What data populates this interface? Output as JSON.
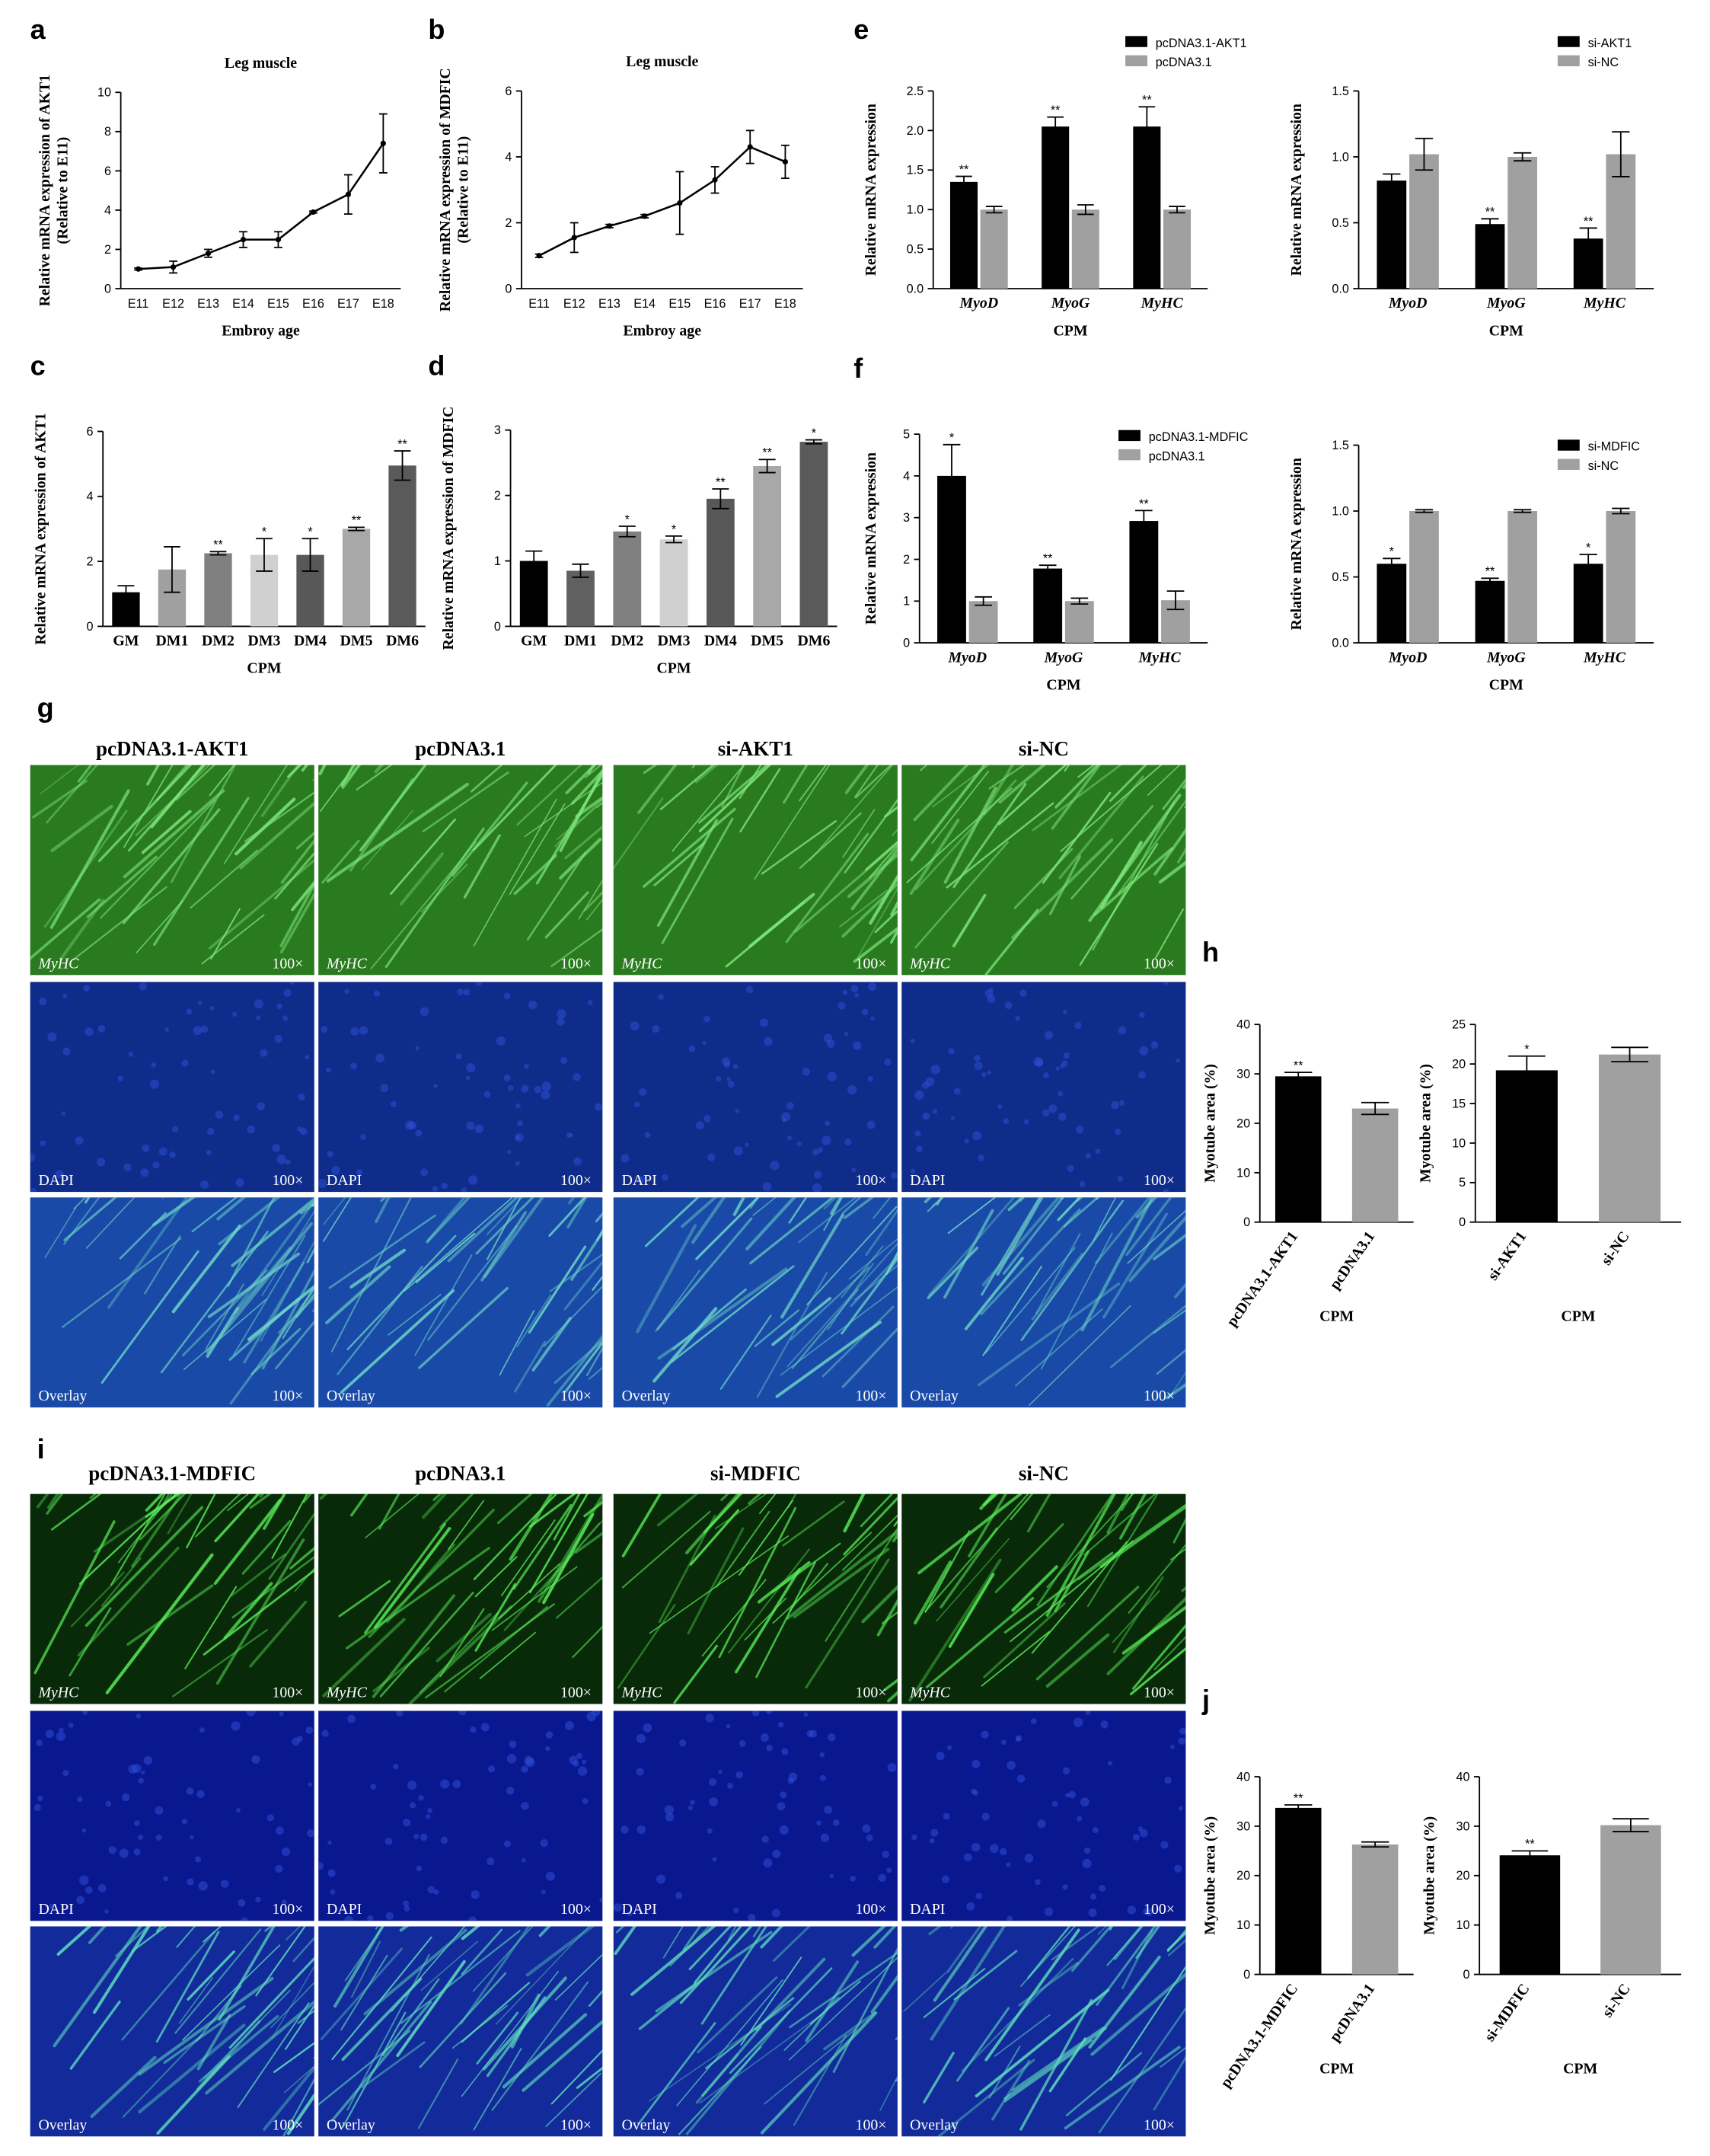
{
  "chart_data": [
    {
      "type": "line",
      "panel": "a",
      "title": "Leg muscle",
      "categories": [
        "E11",
        "E12",
        "E13",
        "E14",
        "E15",
        "E16",
        "E17",
        "E18"
      ],
      "series": [
        {
          "color": "#000000",
          "values": [
            1.0,
            1.1,
            1.8,
            2.5,
            2.5,
            3.9,
            4.8,
            7.4
          ],
          "errors": [
            0.05,
            0.3,
            0.2,
            0.4,
            0.4,
            0.05,
            1.0,
            1.5
          ]
        }
      ],
      "ylim": [
        0,
        10
      ],
      "yticks": [
        0,
        2,
        4,
        6,
        8,
        10
      ],
      "ylabel": [
        "Relative mRNA expression of AKT1",
        "(Relative to E11)"
      ],
      "xlabel": "Embroy age"
    },
    {
      "type": "line",
      "panel": "b",
      "title": "Leg muscle",
      "categories": [
        "E11",
        "E12",
        "E13",
        "E14",
        "E15",
        "E16",
        "E17",
        "E18"
      ],
      "series": [
        {
          "color": "#000000",
          "values": [
            1.0,
            1.55,
            1.9,
            2.2,
            2.6,
            3.3,
            4.3,
            3.85
          ],
          "errors": [
            0.05,
            0.45,
            0.05,
            0.05,
            0.95,
            0.4,
            0.5,
            0.5
          ]
        }
      ],
      "ylim": [
        0,
        6
      ],
      "yticks": [
        0,
        2,
        4,
        6
      ],
      "ylabel": [
        "Relative mRNA expression of MDFIC",
        "(Relative to E11)"
      ],
      "xlabel": "Embroy age"
    },
    {
      "type": "bar",
      "panel": "c",
      "categories": [
        "GM",
        "DM1",
        "DM2",
        "DM3",
        "DM4",
        "DM5",
        "DM6"
      ],
      "series": [
        {
          "colors": [
            "#000000",
            "#a0a0a0",
            "#808080",
            "#d0d0d0",
            "#585858",
            "#a8a8a8",
            "#5a5a5a"
          ],
          "values": [
            1.05,
            1.75,
            2.25,
            2.2,
            2.2,
            3.0,
            4.95
          ],
          "errors": [
            0.2,
            0.7,
            0.05,
            0.5,
            0.5,
            0.05,
            0.45
          ],
          "annotations": [
            null,
            null,
            "**",
            "*",
            "*",
            "**",
            "**"
          ]
        }
      ],
      "ylim": [
        0,
        6
      ],
      "yticks": [
        0,
        2,
        4,
        6
      ],
      "ylabel": "Relative mRNA expression of AKT1",
      "xlabel": "CPM"
    },
    {
      "type": "bar",
      "panel": "d",
      "categories": [
        "GM",
        "DM1",
        "DM2",
        "DM3",
        "DM4",
        "DM5",
        "DM6"
      ],
      "series": [
        {
          "colors": [
            "#000000",
            "#606060",
            "#808080",
            "#d0d0d0",
            "#585858",
            "#a8a8a8",
            "#5a5a5a"
          ],
          "values": [
            1.0,
            0.85,
            1.45,
            1.33,
            1.95,
            2.45,
            2.82
          ],
          "errors": [
            0.15,
            0.1,
            0.08,
            0.05,
            0.15,
            0.1,
            0.03
          ],
          "annotations": [
            null,
            null,
            "*",
            "*",
            "**",
            "**",
            "*"
          ]
        }
      ],
      "ylim": [
        0,
        3
      ],
      "yticks": [
        0,
        1,
        2,
        3
      ],
      "ylabel": "Relative mRNA expression of MDFIC",
      "xlabel": "CPM"
    },
    {
      "type": "bar",
      "panel": "e",
      "categories": [
        "MyoD",
        "MyoG",
        "MyHC"
      ],
      "series": [
        {
          "name": "pcDNA3.1-AKT1",
          "color": "#000000",
          "values": [
            1.35,
            2.05,
            2.05
          ],
          "errors": [
            0.07,
            0.12,
            0.25
          ],
          "annotations": [
            "**",
            "**",
            "**"
          ]
        },
        {
          "name": "pcDNA3.1",
          "color": "#a0a0a0",
          "values": [
            1.0,
            1.0,
            1.0
          ],
          "errors": [
            0.04,
            0.06,
            0.04
          ]
        }
      ],
      "ylim": [
        0,
        2.5
      ],
      "yticks": [
        {
          "value": 0,
          "label": "0.0"
        },
        0.5,
        {
          "value": 1,
          "label": "1.0"
        },
        1.5,
        {
          "value": 2,
          "label": "2.0"
        },
        2.5
      ],
      "ylabel": "Relative mRNA expression",
      "xlabel": "CPM"
    },
    {
      "type": "bar",
      "categories": [
        "MyoD",
        "MyoG",
        "MyHC"
      ],
      "series": [
        {
          "name": "si-AKT1",
          "color": "#000000",
          "values": [
            0.82,
            0.49,
            0.38
          ],
          "errors": [
            0.05,
            0.04,
            0.08
          ],
          "annotations": [
            null,
            "**",
            "**"
          ]
        },
        {
          "name": "si-NC",
          "color": "#a0a0a0",
          "values": [
            1.02,
            1.0,
            1.02
          ],
          "errors": [
            0.12,
            0.03,
            0.17
          ]
        }
      ],
      "ylim": [
        0,
        1.5
      ],
      "yticks": [
        {
          "value": 0,
          "label": "0.0"
        },
        0.5,
        {
          "value": 1,
          "label": "1.0"
        },
        1.5
      ],
      "ylabel": "Relative mRNA expression",
      "xlabel": "CPM"
    },
    {
      "type": "bar",
      "panel": "f",
      "categories": [
        "MyoD",
        "MyoG",
        "MyHC"
      ],
      "series": [
        {
          "name": "pcDNA3.1-MDFIC",
          "color": "#000000",
          "values": [
            4.0,
            1.78,
            2.92
          ],
          "errors": [
            0.75,
            0.08,
            0.25
          ],
          "annotations": [
            "*",
            "**",
            "**"
          ]
        },
        {
          "name": "pcDNA3.1",
          "color": "#a0a0a0",
          "values": [
            1.0,
            1.0,
            1.02
          ],
          "errors": [
            0.1,
            0.07,
            0.22
          ]
        }
      ],
      "ylim": [
        0,
        5
      ],
      "yticks": [
        0,
        1,
        2,
        3,
        4,
        5
      ],
      "ylabel": "Relative mRNA expression",
      "xlabel": "CPM"
    },
    {
      "type": "bar",
      "categories": [
        "MyoD",
        "MyoG",
        "MyHC"
      ],
      "series": [
        {
          "name": "si-MDFIC",
          "color": "#000000",
          "values": [
            0.6,
            0.47,
            0.6
          ],
          "errors": [
            0.04,
            0.02,
            0.07
          ],
          "annotations": [
            "*",
            "**",
            "*"
          ]
        },
        {
          "name": "si-NC",
          "color": "#a0a0a0",
          "values": [
            1.0,
            1.0,
            1.0
          ],
          "errors": [
            0.01,
            0.01,
            0.02
          ]
        }
      ],
      "ylim": [
        0,
        1.5
      ],
      "yticks": [
        {
          "value": 0,
          "label": "0.0"
        },
        0.5,
        {
          "value": 1,
          "label": "1.0"
        },
        1.5
      ],
      "ylabel": "Relative mRNA expression",
      "xlabel": "CPM"
    },
    {
      "type": "bar",
      "panel": "h",
      "categories": [
        "pcDNA3.1-AKT1",
        "pcDNA3.1"
      ],
      "series": [
        {
          "colors": [
            "#000000",
            "#a0a0a0"
          ],
          "values": [
            29.5,
            23.0
          ],
          "errors": [
            0.8,
            1.2
          ],
          "annotations": [
            "**",
            null
          ]
        }
      ],
      "ylim": [
        0,
        40
      ],
      "yticks": [
        0,
        10,
        20,
        30,
        40
      ],
      "ylabel": "Myotube area (%)",
      "xlabel": "CPM"
    },
    {
      "type": "bar",
      "categories": [
        "si-AKT1",
        "si-NC"
      ],
      "series": [
        {
          "colors": [
            "#000000",
            "#a0a0a0"
          ],
          "values": [
            19.2,
            21.2
          ],
          "errors": [
            1.8,
            0.9
          ],
          "annotations": [
            "*",
            null
          ]
        }
      ],
      "ylim": [
        0,
        25
      ],
      "yticks": [
        0,
        5,
        10,
        15,
        20,
        25
      ],
      "ylabel": "Myotube area (%)",
      "xlabel": "CPM"
    },
    {
      "type": "bar",
      "panel": "j",
      "categories": [
        "pcDNA3.1-MDFIC",
        "pcDNA3.1"
      ],
      "series": [
        {
          "colors": [
            "#000000",
            "#a0a0a0"
          ],
          "values": [
            33.7,
            26.3
          ],
          "errors": [
            0.6,
            0.5
          ],
          "annotations": [
            "**",
            null
          ]
        }
      ],
      "ylim": [
        0,
        40
      ],
      "yticks": [
        0,
        10,
        20,
        30,
        40
      ],
      "ylabel": "Myotube area (%)",
      "xlabel": "CPM"
    },
    {
      "type": "bar",
      "categories": [
        "si-MDFIC",
        "si-NC"
      ],
      "series": [
        {
          "colors": [
            "#000000",
            "#a0a0a0"
          ],
          "values": [
            24.1,
            30.2
          ],
          "errors": [
            0.9,
            1.3
          ],
          "annotations": [
            "**",
            null
          ]
        }
      ],
      "ylim": [
        0,
        40
      ],
      "yticks": [
        0,
        10,
        20,
        30,
        40
      ],
      "ylabel": "Myotube area (%)",
      "xlabel": "CPM"
    }
  ],
  "image_figures": [
    {
      "panel": "g",
      "columns": [
        "pcDNA3.1-AKT1",
        "pcDNA3.1",
        "si-AKT1",
        "si-NC"
      ],
      "rows": [
        "MyHC",
        "DAPI",
        "Overlay"
      ],
      "magnification": "100×"
    },
    {
      "panel": "i",
      "columns": [
        "pcDNA3.1-MDFIC",
        "pcDNA3.1",
        "si-MDFIC",
        "si-NC"
      ],
      "rows": [
        "MyHC",
        "DAPI",
        "Overlay"
      ],
      "magnification": "100×"
    }
  ]
}
